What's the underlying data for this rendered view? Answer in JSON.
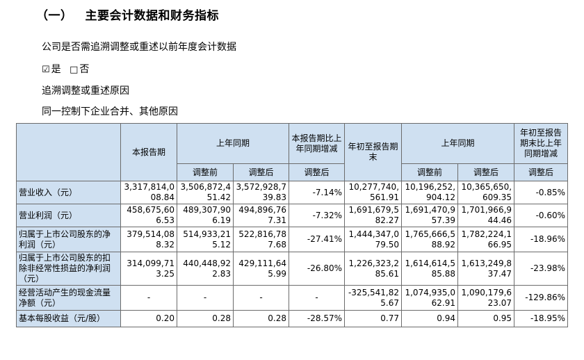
{
  "section": {
    "number": "（一）",
    "title": "主要会计数据和财务指标"
  },
  "question": "公司是否需追溯调整或重述以前年度会计数据",
  "choice": {
    "yes_mark": "☑",
    "yes": "是",
    "no_mark": "□",
    "no": "否"
  },
  "reason_label": "追溯调整或重述原因",
  "reason_value": "同一控制下企业合并、其他原因",
  "table": {
    "headers": {
      "current_period": "本报告期",
      "prior_period": "上年同期",
      "change_current": "本报告期比上年同期增减",
      "ytd": "年初至报告期末",
      "prior_ytd": "上年同期",
      "change_ytd": "年初至报告期末比上年同期增减",
      "before_adj": "调整前",
      "after_adj": "调整后",
      "after_adj_change": "调整后",
      "before_adj_ytd": "调整前",
      "after_adj_ytd": "调整后",
      "after_adj_change_ytd": "调整后"
    },
    "rows": [
      {
        "label": "营业收入（元）",
        "cells": [
          "3,317,814,008.84",
          "3,506,872,451.42",
          "3,572,928,739.83",
          "-7.14%",
          "10,277,740,561.91",
          "10,196,252,904.12",
          "10,365,650,609.35",
          "-0.85%"
        ]
      },
      {
        "label": "营业利润（元）",
        "cells": [
          "458,675,606.53",
          "489,307,906.19",
          "494,896,767.31",
          "-7.32%",
          "1,691,679,582.27",
          "1,691,470,957.39",
          "1,701,966,944.46",
          "-0.60%"
        ]
      },
      {
        "label": "归属于上市公司股东的净利润（元）",
        "cells": [
          "379,514,088.32",
          "514,933,215.12",
          "522,816,787.68",
          "-27.41%",
          "1,444,347,079.50",
          "1,765,666,588.92",
          "1,782,224,166.95",
          "-18.96%"
        ]
      },
      {
        "label": "归属于上市公司股东的扣除非经常性损益的净利润（元）",
        "cells": [
          "314,099,713.25",
          "440,448,922.83",
          "429,111,645.99",
          "-26.80%",
          "1,226,323,285.61",
          "1,614,614,585.88",
          "1,613,249,837.47",
          "-23.98%"
        ]
      },
      {
        "label": "经营活动产生的现金流量净额（元）",
        "cells": [
          "-",
          "-",
          "-",
          "-",
          "-325,541,825.67",
          "1,074,935,062.91",
          "1,090,179,623.07",
          "-129.86%"
        ]
      },
      {
        "label": "基本每股收益（元/股）",
        "cells": [
          "0.20",
          "0.28",
          "0.28",
          "-28.57%",
          "0.77",
          "0.94",
          "0.95",
          "-18.95%"
        ]
      }
    ]
  }
}
